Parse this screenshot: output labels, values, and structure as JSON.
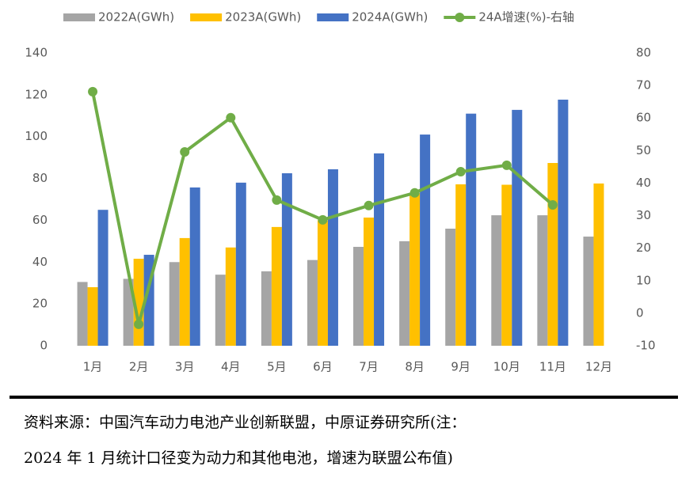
{
  "chart_data": {
    "type": "bar",
    "categories": [
      "1月",
      "2月",
      "3月",
      "4月",
      "5月",
      "6月",
      "7月",
      "8月",
      "9月",
      "10月",
      "11月",
      "12月"
    ],
    "series": [
      {
        "name": "2022A(GWh)",
        "color": "#a5a5a5",
        "values": [
          30.5,
          32,
          40,
          34,
          35.6,
          41,
          47.3,
          50,
          56,
          62.4,
          62.4,
          52.2
        ]
      },
      {
        "name": "2023A(GWh)",
        "color": "#ffc000",
        "values": [
          28,
          41.6,
          51.5,
          47,
          56.8,
          60,
          61.3,
          73,
          77.2,
          77,
          87.4,
          77.6
        ]
      },
      {
        "name": "2024A(GWh)",
        "color": "#4472c4",
        "values": [
          65,
          43.5,
          75.7,
          78,
          82.5,
          84.4,
          92,
          101,
          111,
          112.8,
          117.7,
          null
        ]
      },
      {
        "name": "24A增速(%)-右轴",
        "color": "#70ad47",
        "type": "line",
        "axis": "y2",
        "values": [
          68.1,
          -3.4,
          49.6,
          60.1,
          34.8,
          28.7,
          33.1,
          37,
          43.5,
          45.5,
          33.3,
          null
        ]
      }
    ],
    "ylim": [
      0,
      140
    ],
    "yticks": [
      0,
      20,
      40,
      60,
      80,
      100,
      120,
      140
    ],
    "y2lim": [
      -10,
      80
    ],
    "y2ticks": [
      -10,
      0,
      10,
      20,
      30,
      40,
      50,
      60,
      70,
      80
    ],
    "grid": false
  },
  "note": {
    "lines": [
      "资料来源：中国汽车动力电池产业创新联盟，中原证券研究所(注：",
      "2024 年 1 月统计口径变为动力和其他电池，增速为联盟公布值)"
    ]
  }
}
